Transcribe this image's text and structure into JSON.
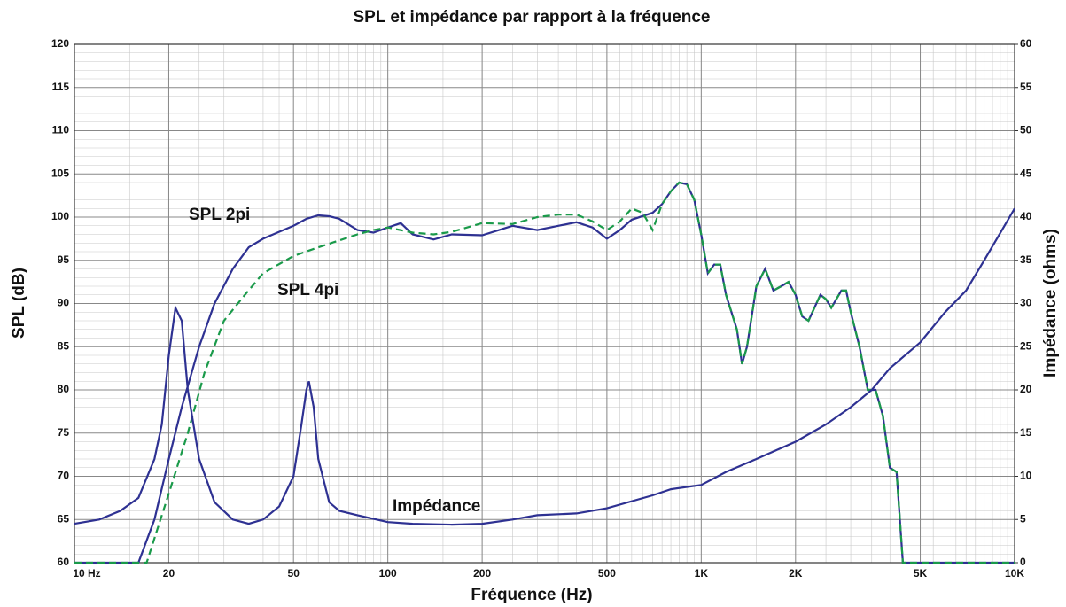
{
  "chart_data": {
    "type": "line",
    "title": "SPL et impédance par rapport à la fréquence",
    "xlabel": "Fréquence (Hz)",
    "ylabel": "SPL (dB)",
    "y2label": "Impédance (ohms)",
    "xscale": "log",
    "grid": true,
    "minor_grid": true,
    "xlim": [
      10,
      10000
    ],
    "ylim": [
      60,
      120
    ],
    "y2lim": [
      0,
      60
    ],
    "xticks": [
      {
        "value": 10,
        "label": "10  Hz"
      },
      20,
      50,
      100,
      200,
      500,
      {
        "value": 1000,
        "label": "1K"
      },
      {
        "value": 2000,
        "label": "2K"
      },
      {
        "value": 5000,
        "label": "5K"
      },
      {
        "value": 10000,
        "label": "10K"
      }
    ],
    "yticks": [
      60,
      65,
      70,
      75,
      80,
      85,
      90,
      95,
      100,
      105,
      110,
      115,
      120
    ],
    "y2ticks": [
      0,
      5,
      10,
      15,
      20,
      25,
      30,
      35,
      40,
      45,
      50,
      55,
      60
    ],
    "series": [
      {
        "name": "SPL 2pi",
        "color": "#2e3192",
        "dash": false,
        "x": [
          10,
          16,
          18,
          20,
          22,
          25,
          28,
          32,
          36,
          40,
          45,
          50,
          55,
          60,
          65,
          70,
          80,
          90,
          100,
          110,
          120,
          140,
          160,
          200,
          250,
          300,
          350,
          400,
          450,
          500,
          550,
          600,
          700,
          750,
          800,
          850,
          900,
          950,
          1000,
          1050,
          1100,
          1150,
          1200,
          1300,
          1350,
          1400,
          1500,
          1600,
          1700,
          1800,
          1900,
          2000,
          2100,
          2200,
          2400,
          2500,
          2600,
          2800,
          2900,
          3000,
          3200,
          3400,
          3600,
          3800,
          4000,
          4200,
          4400,
          4500,
          10000
        ],
        "values": [
          60,
          60,
          65,
          72,
          78,
          85,
          90,
          94,
          96.5,
          97.5,
          98.3,
          99,
          99.8,
          100.2,
          100.1,
          99.8,
          98.5,
          98.2,
          98.8,
          99.3,
          98,
          97.4,
          98,
          97.9,
          99,
          98.5,
          99,
          99.4,
          98.8,
          97.5,
          98.5,
          99.7,
          100.5,
          101.5,
          103,
          104,
          103.8,
          102,
          98,
          93.5,
          94.5,
          94.5,
          91,
          87,
          83,
          85,
          92,
          94,
          91.5,
          92,
          92.5,
          91,
          88.5,
          88,
          91,
          90.5,
          89.5,
          91.5,
          91.5,
          89,
          85,
          80,
          80,
          77,
          71,
          70.5,
          60,
          60,
          60
        ]
      },
      {
        "name": "SPL 4pi",
        "color": "#1a9a4a",
        "dash": true,
        "x": [
          10,
          17,
          20,
          23,
          26,
          30,
          35,
          40,
          50,
          60,
          70,
          80,
          90,
          100,
          120,
          140,
          160,
          200,
          250,
          300,
          350,
          400,
          450,
          500,
          550,
          600,
          650,
          700,
          750,
          800,
          850,
          900,
          950,
          1000,
          1050,
          1100,
          1150,
          1200,
          1300,
          1350,
          1400,
          1500,
          1600,
          1700,
          1800,
          1900,
          2000,
          2100,
          2200,
          2400,
          2500,
          2600,
          2800,
          2900,
          3000,
          3200,
          3400,
          3600,
          3800,
          4000,
          4200,
          4400,
          4500,
          10000
        ],
        "values": [
          60,
          60,
          68,
          75,
          82,
          88,
          91,
          93.5,
          95.5,
          96.5,
          97.3,
          98,
          98.5,
          98.8,
          98.2,
          98,
          98.3,
          99.3,
          99.2,
          100,
          100.3,
          100.3,
          99.5,
          98.5,
          99.5,
          101,
          100.5,
          98.5,
          101.5,
          103,
          104,
          103.8,
          102,
          98,
          93.5,
          94.5,
          94.5,
          91,
          87,
          83,
          85,
          92,
          94,
          91.5,
          92,
          92.5,
          91,
          88.5,
          88,
          91,
          90.5,
          89.5,
          91.5,
          91.5,
          89,
          85,
          80,
          80,
          77,
          71,
          70.5,
          60,
          60,
          60
        ]
      },
      {
        "name": "Impédance",
        "color": "#2e3192",
        "dash": false,
        "axis": "y2",
        "x": [
          10,
          12,
          14,
          16,
          18,
          19,
          20,
          21,
          22,
          23,
          25,
          28,
          32,
          36,
          40,
          45,
          50,
          53,
          55,
          56,
          58,
          60,
          65,
          70,
          80,
          100,
          120,
          160,
          200,
          250,
          300,
          400,
          500,
          700,
          800,
          1000,
          1200,
          1500,
          2000,
          2500,
          3000,
          3500,
          4000,
          5000,
          6000,
          7000,
          8000,
          10000
        ],
        "values": [
          4.5,
          5,
          6,
          7.5,
          12,
          16,
          24,
          29.5,
          28,
          20,
          12,
          7,
          5,
          4.5,
          5,
          6.5,
          10,
          16,
          20,
          21,
          18,
          12,
          7,
          6,
          5.5,
          4.7,
          4.5,
          4.4,
          4.5,
          5,
          5.5,
          5.7,
          6.3,
          7.8,
          8.5,
          9,
          10.5,
          12,
          14,
          16,
          18,
          20,
          22.5,
          25.5,
          29,
          31.5,
          35,
          41
        ]
      }
    ]
  }
}
